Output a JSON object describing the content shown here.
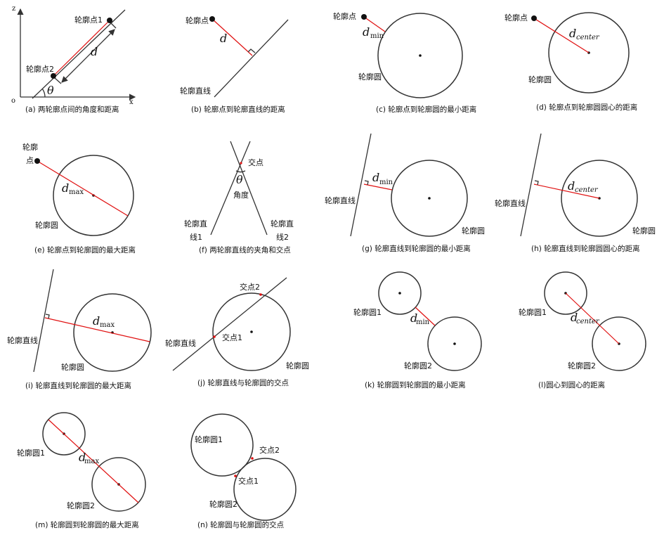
{
  "panels": {
    "a": {
      "caption": "(a) 两轮廓点间的角度和距离",
      "point1": "轮廓点1",
      "point2": "轮廓点2",
      "distance": "d",
      "angle": "θ",
      "axis_z": "z",
      "axis_x": "x",
      "origin": "o"
    },
    "b": {
      "caption": "(b) 轮廓点到轮廓直线的距离",
      "point": "轮廓点",
      "line": "轮廓直线",
      "distance": "d"
    },
    "c": {
      "caption": "(c) 轮廓点到轮廓圆的最小距离",
      "point": "轮廓点",
      "circle": "轮廓圆",
      "d": "d",
      "sub": "min"
    },
    "d": {
      "caption": "(d) 轮廓点到轮廓圆圆心的距离",
      "point": "轮廓点",
      "circle": "轮廓圆",
      "d": "d",
      "sub": "center"
    },
    "e": {
      "caption": "(e) 轮廓点到轮廓圆的最大距离",
      "point_line1": "轮廓",
      "point_line2": "点",
      "circle": "轮廓圆",
      "d": "d",
      "sub": "max"
    },
    "f": {
      "caption": "(f) 两轮廓直线的夹角和交点",
      "intersection": "交点",
      "angle": "θ",
      "angle_label": "角度",
      "line1_a": "轮廓直",
      "line1_b": "线1",
      "line2_a": "轮廓直",
      "line2_b": "线2"
    },
    "g": {
      "caption": "(g) 轮廓直线到轮廓圆的最小距离",
      "line": "轮廓直线",
      "circle": "轮廓圆",
      "d": "d",
      "sub": "min"
    },
    "h": {
      "caption": "(h) 轮廓直线到轮廓圆圆心的距离",
      "line": "轮廓直线",
      "circle": "轮廓圆",
      "d": "d",
      "sub": "center"
    },
    "i": {
      "caption": "(i) 轮廓直线到轮廓圆的最大距离",
      "line": "轮廓直线",
      "circle": "轮廓圆",
      "d": "d",
      "sub": "max"
    },
    "j": {
      "caption": "(j) 轮廓直线与轮廓圆的交点",
      "line": "轮廓直线",
      "circle": "轮廓圆",
      "int1": "交点1",
      "int2": "交点2"
    },
    "k": {
      "caption": "(k) 轮廓圆到轮廓圆的最小距离",
      "circle1": "轮廓圆1",
      "circle2": "轮廓圆2",
      "d": "d",
      "sub": "min"
    },
    "l": {
      "caption": "(l)圆心到圆心的距离",
      "circle1": "轮廓圆1",
      "circle2": "轮廓圆2",
      "d": "d",
      "sub": "center"
    },
    "m": {
      "caption": "(m) 轮廓圆到轮廓圆的最大距离",
      "circle1": "轮廓圆1",
      "circle2": "轮廓圆2",
      "d": "d",
      "sub": "max"
    },
    "n": {
      "caption": "(n) 轮廓圆与轮廓圆的交点",
      "circle1": "轮廓圆1",
      "circle2": "轮廓圆2",
      "int1": "交点1",
      "int2": "交点2"
    }
  }
}
